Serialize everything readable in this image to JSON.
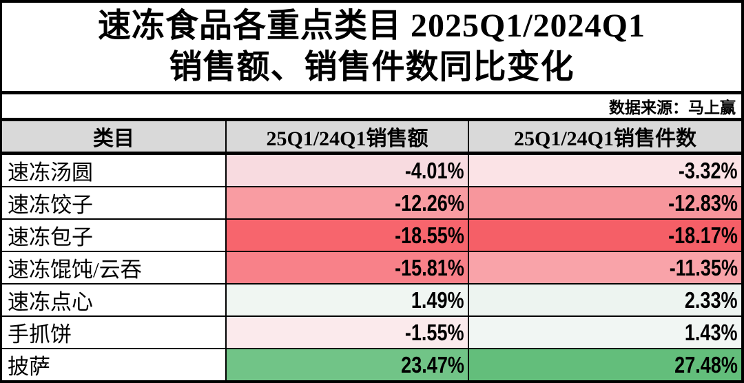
{
  "title": {
    "line1": "速冻食品各重点类目 2025Q1/2024Q1",
    "line2": "销售额、销售件数同比变化"
  },
  "source": "数据来源：马上赢",
  "colors": {
    "header_bg": "#D9D9D9",
    "border": "#000000",
    "negative_max": "#F5615F",
    "positive_max": "#63BE7B",
    "midpoint": "#FCFCFF"
  },
  "table": {
    "columns": [
      "类目",
      "25Q1/24Q1销售额",
      "25Q1/24Q1销售件数"
    ],
    "rows": [
      {
        "category": "速冻汤圆",
        "sales_value": "-4.01%",
        "sales_units": "-3.32%",
        "sales_value_bg": "#F8DBE0",
        "sales_units_bg": "#FBE3E6"
      },
      {
        "category": "速冻饺子",
        "sales_value": "-12.26%",
        "sales_units": "-12.83%",
        "sales_value_bg": "#F99CA2",
        "sales_units_bg": "#F7969C"
      },
      {
        "category": "速冻包子",
        "sales_value": "-18.55%",
        "sales_units": "-18.17%",
        "sales_value_bg": "#F7656D",
        "sales_units_bg": "#F55F67"
      },
      {
        "category": "速冻馄饨/云吞",
        "sales_value": "-15.81%",
        "sales_units": "-11.35%",
        "sales_value_bg": "#F88189",
        "sales_units_bg": "#F9A3A9"
      },
      {
        "category": "速冻点心",
        "sales_value": "1.49%",
        "sales_units": "2.33%",
        "sales_value_bg": "#F0F6F2",
        "sales_units_bg": "#EDF4F0"
      },
      {
        "category": "手抓饼",
        "sales_value": "-1.55%",
        "sales_units": "1.43%",
        "sales_value_bg": "#FBEAEC",
        "sales_units_bg": "#F1F6F3"
      },
      {
        "category": "披萨",
        "sales_value": "23.47%",
        "sales_units": "27.48%",
        "sales_value_bg": "#71C487",
        "sales_units_bg": "#63BE7B"
      }
    ]
  },
  "chart_data": {
    "type": "table",
    "title": "速冻食品各重点类目 2025Q1/2024Q1 销售额、销售件数同比变化",
    "source": "数据来源：马上赢",
    "columns": [
      "类目",
      "25Q1/24Q1销售额",
      "25Q1/24Q1销售件数"
    ],
    "categories": [
      "速冻汤圆",
      "速冻饺子",
      "速冻包子",
      "速冻馄饨/云吞",
      "速冻点心",
      "手抓饼",
      "披萨"
    ],
    "series": [
      {
        "name": "25Q1/24Q1销售额",
        "values_pct": [
          -4.01,
          -12.26,
          -18.55,
          -15.81,
          1.49,
          -1.55,
          23.47
        ]
      },
      {
        "name": "25Q1/24Q1销售件数",
        "values_pct": [
          -3.32,
          -12.83,
          -18.17,
          -11.35,
          2.33,
          1.43,
          27.48
        ]
      }
    ],
    "conditional_formatting": "red-white-green color scale on cell backgrounds (negative = red, near zero = white, positive = green)"
  }
}
